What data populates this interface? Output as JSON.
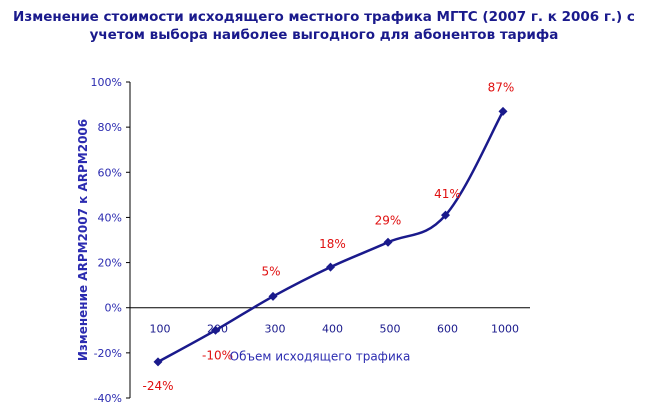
{
  "chart_data": {
    "type": "line",
    "title_lines": [
      "Изменение стоимости исходящего местного трафика МГТС (2007 г. к 2006 г.) с",
      "учетом выбора наиболее выгодного для абонентов тарифа"
    ],
    "xlabel": "Объем исходящего трафика",
    "ylabel": "Изменение ARPM2007 к ARPM2006",
    "categories": [
      "100",
      "200",
      "300",
      "400",
      "500",
      "600",
      "1000"
    ],
    "values": [
      -24,
      -10,
      5,
      18,
      29,
      41,
      87
    ],
    "data_labels": [
      "-24%",
      "-10%",
      "5%",
      "18%",
      "29%",
      "41%",
      "87%"
    ],
    "y_ticks": [
      "100%",
      "80%",
      "60%",
      "40%",
      "20%",
      "0%",
      "-20%",
      "-40%"
    ],
    "ylim": [
      -40,
      100
    ],
    "grid": false,
    "legend": "none",
    "colors": {
      "line": "#1a1a8c",
      "axis_text": "#2b2bb0",
      "data_label": "#e01010",
      "title": "#1a1a8c"
    }
  }
}
